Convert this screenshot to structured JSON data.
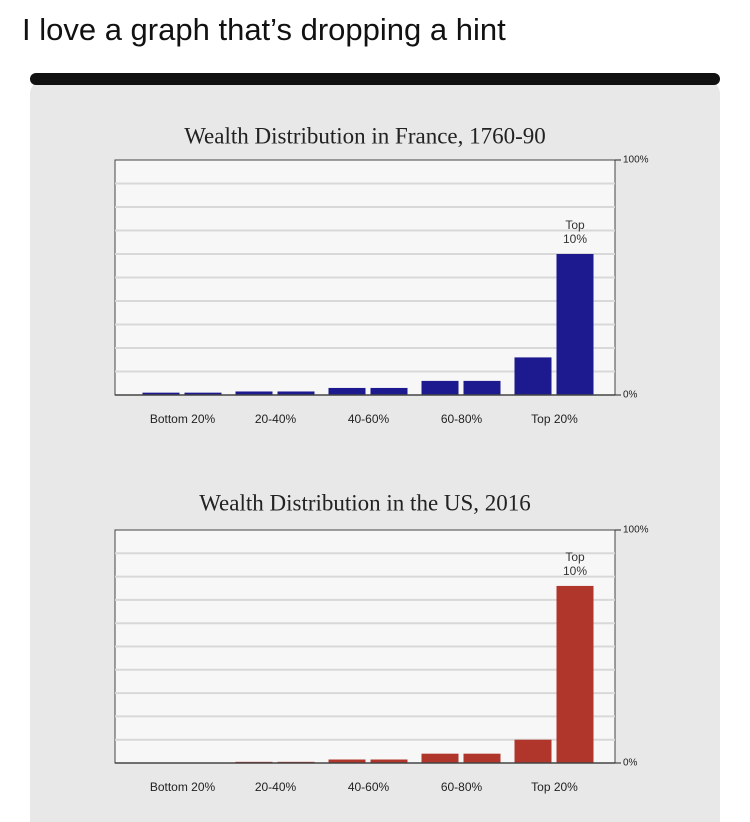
{
  "caption": "I love a graph that’s dropping a hint",
  "chart_data": [
    {
      "type": "bar",
      "title": "Wealth Distribution in France, 1760-90",
      "categories": [
        "Bottom 20%",
        "20-40%",
        "40-60%",
        "60-80%",
        "Top 20%"
      ],
      "values": [
        [
          1,
          1
        ],
        [
          1.5,
          1.5
        ],
        [
          3,
          3
        ],
        [
          6,
          6
        ],
        [
          16,
          60
        ]
      ],
      "annotation": [
        "Top",
        "10%"
      ],
      "color": "#1c1a8e",
      "ylim": [
        0,
        100
      ],
      "yticks": [
        {
          "value": 0,
          "label": "0%"
        },
        {
          "value": 100,
          "label": "100%"
        }
      ],
      "gridlines": [
        10,
        20,
        30,
        40,
        50,
        60,
        70,
        80,
        90
      ]
    },
    {
      "type": "bar",
      "title": "Wealth Distribution in the US, 2016",
      "categories": [
        "Bottom 20%",
        "20-40%",
        "40-60%",
        "60-80%",
        "Top 20%"
      ],
      "values": [
        [
          0,
          0
        ],
        [
          0.5,
          0.5
        ],
        [
          1.5,
          1.5
        ],
        [
          4,
          4
        ],
        [
          10,
          76
        ]
      ],
      "annotation": [
        "Top",
        "10%"
      ],
      "color": "#b0362c",
      "ylim": [
        0,
        100
      ],
      "yticks": [
        {
          "value": 0,
          "label": "0%"
        },
        {
          "value": 100,
          "label": "100%"
        }
      ],
      "gridlines": [
        10,
        20,
        30,
        40,
        50,
        60,
        70,
        80,
        90
      ]
    }
  ]
}
